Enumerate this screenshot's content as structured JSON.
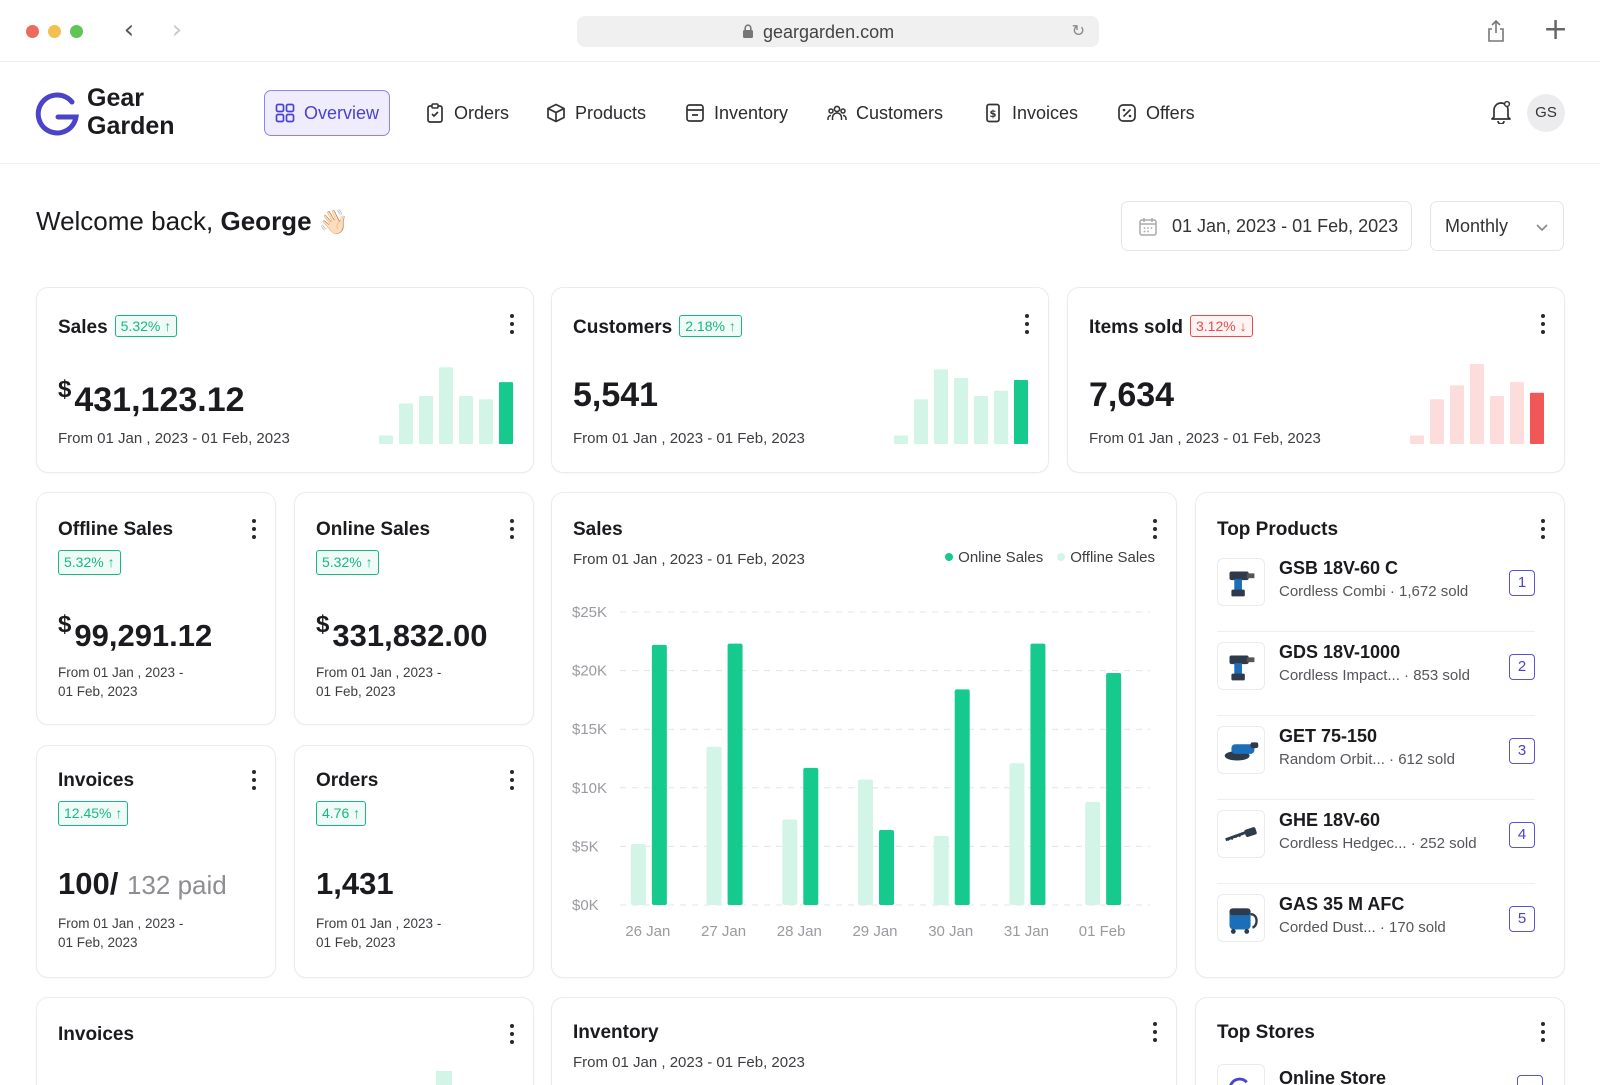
{
  "browser": {
    "url": "geargarden.com"
  },
  "brand": {
    "line1": "Gear",
    "line2": "Garden"
  },
  "nav": [
    {
      "label": "Overview",
      "icon": "grid-icon"
    },
    {
      "label": "Orders",
      "icon": "clipboard-icon"
    },
    {
      "label": "Products",
      "icon": "box-icon"
    },
    {
      "label": "Inventory",
      "icon": "inventory-icon"
    },
    {
      "label": "Customers",
      "icon": "users-icon"
    },
    {
      "label": "Invoices",
      "icon": "invoice-icon"
    },
    {
      "label": "Offers",
      "icon": "percent-icon"
    }
  ],
  "user": {
    "initials": "GS"
  },
  "welcome": {
    "prefix": "Welcome back,",
    "name": "George",
    "emoji": "👋🏻"
  },
  "filters": {
    "date_range": "01 Jan, 2023 - 01 Feb, 2023",
    "period": "Monthly"
  },
  "colors": {
    "accent": "#4b44c9",
    "green": "#16c98c",
    "green_light": "#d2f5e8",
    "red": "#f25757",
    "red_light": "#fddcdc"
  },
  "cards": {
    "sales": {
      "title": "Sales",
      "badge": "5.32%",
      "currency": "$",
      "value": "431,123.12",
      "range": "From 01 Jan , 2023 - 01 Feb, 2023",
      "spark": [
        8,
        38,
        45,
        72,
        45,
        42,
        58
      ]
    },
    "customers": {
      "title": "Customers",
      "badge": "2.18%",
      "value": "5,541",
      "range": "From 01 Jan , 2023 - 01 Feb, 2023",
      "spark": [
        8,
        42,
        70,
        62,
        45,
        50,
        60
      ]
    },
    "items_sold": {
      "title": "Items sold",
      "badge": "3.12%",
      "value": "7,634",
      "range": "From 01 Jan , 2023 - 01 Feb, 2023",
      "spark": [
        8,
        42,
        55,
        75,
        45,
        58,
        48
      ]
    },
    "offline_sales": {
      "title": "Offline Sales",
      "badge": "5.32%",
      "currency": "$",
      "value": "99,291.12",
      "range1": "From 01 Jan , 2023 -",
      "range2": "01 Feb, 2023"
    },
    "online_sales": {
      "title": "Online Sales",
      "badge": "5.32%",
      "currency": "$",
      "value": "331,832.00",
      "range1": "From 01 Jan , 2023 -",
      "range2": "01 Feb, 2023"
    },
    "invoices": {
      "title": "Invoices",
      "badge": "12.45%",
      "value": "100/",
      "paid": "132 paid",
      "range1": "From 01 Jan , 2023 -",
      "range2": "01 Feb, 2023"
    },
    "orders": {
      "title": "Orders",
      "badge": "4.76",
      "value": "1,431",
      "range1": "From 01 Jan , 2023 -",
      "range2": "01 Feb, 2023"
    },
    "invoices_bottom": {
      "title": "Invoices"
    },
    "inventory_bottom": {
      "title": "Inventory",
      "range": "From 01 Jan , 2023 - 01 Feb, 2023"
    },
    "top_stores": {
      "title": "Top Stores",
      "first_store": "Online Store"
    }
  },
  "chart_data": {
    "type": "bar",
    "title": "Sales",
    "subtitle": "From 01 Jan , 2023 - 01 Feb, 2023",
    "categories": [
      "26 Jan",
      "27 Jan",
      "28 Jan",
      "29 Jan",
      "30 Jan",
      "31 Jan",
      "01 Feb"
    ],
    "series": [
      {
        "name": "Offline Sales",
        "values": [
          5200,
          13500,
          7300,
          10700,
          5900,
          12100,
          8800
        ]
      },
      {
        "name": "Online Sales",
        "values": [
          22200,
          22300,
          11700,
          6400,
          18400,
          22300,
          19800
        ]
      }
    ],
    "y_ticks": [
      "$0K",
      "$5K",
      "$10K",
      "$15K",
      "$20K",
      "$25K"
    ],
    "ylim": [
      0,
      25000
    ],
    "grid": true,
    "legend": "top-right"
  },
  "top_products": {
    "title": "Top Products",
    "items": [
      {
        "name": "GSB 18V-60 C",
        "desc": "Cordless Combi · 1,672 sold",
        "rank": "1",
        "icon": "drill-icon"
      },
      {
        "name": "GDS 18V-1000",
        "desc": "Cordless Impact... · 853 sold",
        "rank": "2",
        "icon": "drill-icon"
      },
      {
        "name": "GET 75-150",
        "desc": "Random Orbit... · 612 sold",
        "rank": "3",
        "icon": "sander-icon"
      },
      {
        "name": "GHE 18V-60",
        "desc": "Cordless Hedgec... · 252 sold",
        "rank": "4",
        "icon": "hedge-trimmer-icon"
      },
      {
        "name": "GAS 35 M AFC",
        "desc": "Corded Dust... · 170 sold",
        "rank": "5",
        "icon": "vacuum-icon"
      }
    ]
  }
}
